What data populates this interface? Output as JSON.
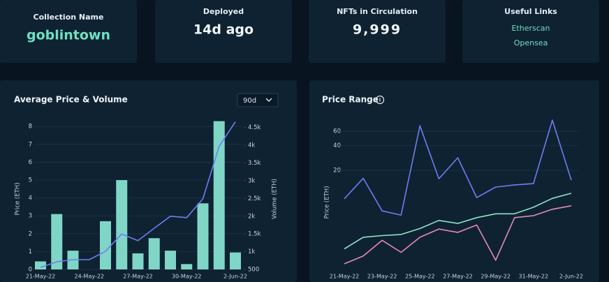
{
  "cards": [
    {
      "label": "Collection Name",
      "value": "goblintown"
    },
    {
      "label": "Deployed",
      "value": "14d ago"
    },
    {
      "label": "NFTs in Circulation",
      "value": "9,999"
    }
  ],
  "useful_links": {
    "label": "Useful Links",
    "links": [
      "Etherscan",
      "Opensea"
    ]
  },
  "chart_data": [
    {
      "type": "bar",
      "title": "Average Price & Volume",
      "dropdown": "90d",
      "ylabel": "Price (ETH)",
      "y2label": "Volume (ETH)",
      "categories": [
        "21-May-22",
        null,
        null,
        "24-May-22",
        null,
        null,
        "27-May-22",
        null,
        null,
        "30-May-22",
        null,
        null,
        "2-Jun-22"
      ],
      "series": [
        {
          "type": "bar",
          "color": "#7fd6c6",
          "values": [
            0.45,
            3.1,
            1.05,
            null,
            2.7,
            5.0,
            0.9,
            1.75,
            1.05,
            0.3,
            3.7,
            8.3,
            0.95
          ]
        },
        {
          "type": "line",
          "axis": "y2",
          "color": "#6f7df0",
          "values": [
            560,
            715,
            775,
            775,
            1010,
            1500,
            1310,
            1660,
            2000,
            1960,
            2490,
            3970,
            4660
          ]
        }
      ],
      "ylim": [
        0,
        8.4
      ],
      "yticks": [
        0,
        1,
        2,
        3,
        4,
        5,
        6,
        7,
        8
      ],
      "y2lim": [
        500,
        4730
      ],
      "y2ticks": [
        500,
        {
          "value": 1000,
          "label": "1k"
        },
        {
          "value": 1500,
          "label": "1.5k"
        },
        {
          "value": 2000,
          "label": "2k"
        },
        {
          "value": 2500,
          "label": "2.5k"
        },
        {
          "value": 3000,
          "label": "3k"
        },
        {
          "value": 3500,
          "label": "3.5k"
        },
        {
          "value": 4000,
          "label": "4k"
        },
        {
          "value": 4500,
          "label": "4.5k"
        }
      ],
      "grid": true
    },
    {
      "type": "line",
      "title": "Price Range",
      "ylabel": "Price (ETH)",
      "log": true,
      "categories": [
        "21-May-22",
        null,
        "23-May-22",
        null,
        "25-May-22",
        null,
        "27-May-22",
        null,
        "29-May-22",
        null,
        "31-May-22",
        null,
        "2-Jun-22"
      ],
      "series": [
        {
          "color": "#6f7df0",
          "values": [
            9,
            16,
            6.4,
            5.7,
            70,
            15.8,
            28.5,
            9.3,
            12.5,
            13.3,
            13.8,
            82,
            15.2
          ]
        },
        {
          "color": "#8fe3c8",
          "values": [
            2.2,
            3.05,
            3.2,
            3.3,
            3.9,
            4.9,
            4.5,
            5.3,
            5.9,
            5.9,
            7.1,
            9.1,
            10.5
          ]
        },
        {
          "color": "#e48bb8",
          "values": [
            1.45,
            1.8,
            2.8,
            2.0,
            3.05,
            3.85,
            3.5,
            4.3,
            1.6,
            5.3,
            5.6,
            6.7,
            7.4
          ]
        }
      ],
      "ylim": [
        1,
        100
      ],
      "yticks": [
        20,
        40,
        60
      ],
      "grid": true
    }
  ]
}
